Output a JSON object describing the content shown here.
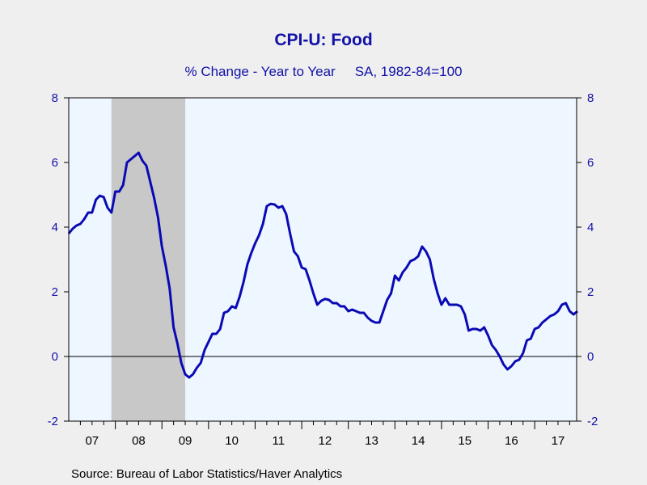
{
  "header": {
    "title": "CPI-U: Food",
    "subtitle_left": "% Change - Year to Year",
    "subtitle_right": "SA, 1982-84=100"
  },
  "footer": {
    "source": "Source:  Bureau of Labor Statistics/Haver Analytics"
  },
  "colors": {
    "series": "#0a0ab4",
    "plot_bg": "#eef6ff",
    "recession": "#c8c8c8",
    "axis_text": "#1212a8",
    "page_bg": "#efefef"
  },
  "chart_data": {
    "type": "line",
    "title": "CPI-U: Food",
    "subtitle": "% Change - Year to Year    SA, 1982-84=100",
    "ylim": [
      -2,
      8
    ],
    "xlim": [
      2007.0,
      2017.9
    ],
    "yticks": [
      8,
      6,
      4,
      2,
      0,
      -2
    ],
    "yticks_right": [
      8,
      6,
      4,
      2,
      0,
      -2
    ],
    "xtick_labels": [
      "07",
      "08",
      "09",
      "10",
      "11",
      "12",
      "13",
      "14",
      "15",
      "16",
      "17"
    ],
    "xtick_years": [
      2007,
      2008,
      2009,
      2010,
      2011,
      2012,
      2013,
      2014,
      2015,
      2016,
      2017
    ],
    "recession": {
      "start": "2007-12",
      "end": "2009-06"
    },
    "zero_line": true,
    "grid": false,
    "series": [
      {
        "values": [
          [
            "2007-01",
            3.8
          ],
          [
            "2007-02",
            3.95
          ],
          [
            "2007-03",
            4.05
          ],
          [
            "2007-04",
            4.1
          ],
          [
            "2007-05",
            4.25
          ],
          [
            "2007-06",
            4.45
          ],
          [
            "2007-07",
            4.45
          ],
          [
            "2007-08",
            4.85
          ],
          [
            "2007-09",
            4.97
          ],
          [
            "2007-10",
            4.93
          ],
          [
            "2007-11",
            4.6
          ],
          [
            "2007-12",
            4.45
          ],
          [
            "2008-01",
            5.1
          ],
          [
            "2008-02",
            5.1
          ],
          [
            "2008-03",
            5.3
          ],
          [
            "2008-04",
            6.0
          ],
          [
            "2008-05",
            6.1
          ],
          [
            "2008-06",
            6.2
          ],
          [
            "2008-07",
            6.3
          ],
          [
            "2008-08",
            6.05
          ],
          [
            "2008-09",
            5.9
          ],
          [
            "2008-10",
            5.4
          ],
          [
            "2008-11",
            4.9
          ],
          [
            "2008-12",
            4.3
          ],
          [
            "2009-01",
            3.4
          ],
          [
            "2009-02",
            2.8
          ],
          [
            "2009-03",
            2.1
          ],
          [
            "2009-04",
            0.9
          ],
          [
            "2009-05",
            0.4
          ],
          [
            "2009-06",
            -0.2
          ],
          [
            "2009-07",
            -0.55
          ],
          [
            "2009-08",
            -0.65
          ],
          [
            "2009-09",
            -0.55
          ],
          [
            "2009-10",
            -0.35
          ],
          [
            "2009-11",
            -0.2
          ],
          [
            "2009-12",
            0.2
          ],
          [
            "2010-01",
            0.45
          ],
          [
            "2010-02",
            0.7
          ],
          [
            "2010-03",
            0.7
          ],
          [
            "2010-04",
            0.85
          ],
          [
            "2010-05",
            1.35
          ],
          [
            "2010-06",
            1.4
          ],
          [
            "2010-07",
            1.55
          ],
          [
            "2010-08",
            1.5
          ],
          [
            "2010-09",
            1.85
          ],
          [
            "2010-10",
            2.3
          ],
          [
            "2010-11",
            2.85
          ],
          [
            "2010-12",
            3.2
          ],
          [
            "2011-01",
            3.5
          ],
          [
            "2011-02",
            3.75
          ],
          [
            "2011-03",
            4.1
          ],
          [
            "2011-04",
            4.65
          ],
          [
            "2011-05",
            4.72
          ],
          [
            "2011-06",
            4.7
          ],
          [
            "2011-07",
            4.6
          ],
          [
            "2011-08",
            4.65
          ],
          [
            "2011-09",
            4.4
          ],
          [
            "2011-10",
            3.8
          ],
          [
            "2011-11",
            3.25
          ],
          [
            "2011-12",
            3.1
          ],
          [
            "2012-01",
            2.75
          ],
          [
            "2012-02",
            2.7
          ],
          [
            "2012-03",
            2.35
          ],
          [
            "2012-04",
            1.95
          ],
          [
            "2012-05",
            1.6
          ],
          [
            "2012-06",
            1.72
          ],
          [
            "2012-07",
            1.78
          ],
          [
            "2012-08",
            1.75
          ],
          [
            "2012-09",
            1.65
          ],
          [
            "2012-10",
            1.65
          ],
          [
            "2012-11",
            1.55
          ],
          [
            "2012-12",
            1.55
          ],
          [
            "2013-01",
            1.4
          ],
          [
            "2013-02",
            1.45
          ],
          [
            "2013-03",
            1.4
          ],
          [
            "2013-04",
            1.35
          ],
          [
            "2013-05",
            1.35
          ],
          [
            "2013-06",
            1.2
          ],
          [
            "2013-07",
            1.1
          ],
          [
            "2013-08",
            1.05
          ],
          [
            "2013-09",
            1.05
          ],
          [
            "2013-10",
            1.4
          ],
          [
            "2013-11",
            1.75
          ],
          [
            "2013-12",
            1.95
          ],
          [
            "2014-01",
            2.5
          ],
          [
            "2014-02",
            2.35
          ],
          [
            "2014-03",
            2.6
          ],
          [
            "2014-04",
            2.75
          ],
          [
            "2014-05",
            2.95
          ],
          [
            "2014-06",
            3.0
          ],
          [
            "2014-07",
            3.1
          ],
          [
            "2014-08",
            3.4
          ],
          [
            "2014-09",
            3.25
          ],
          [
            "2014-10",
            3.0
          ],
          [
            "2014-11",
            2.4
          ],
          [
            "2014-12",
            1.95
          ],
          [
            "2015-01",
            1.6
          ],
          [
            "2015-02",
            1.8
          ],
          [
            "2015-03",
            1.6
          ],
          [
            "2015-04",
            1.6
          ],
          [
            "2015-05",
            1.6
          ],
          [
            "2015-06",
            1.55
          ],
          [
            "2015-07",
            1.3
          ],
          [
            "2015-08",
            0.8
          ],
          [
            "2015-09",
            0.85
          ],
          [
            "2015-10",
            0.85
          ],
          [
            "2015-11",
            0.8
          ],
          [
            "2015-12",
            0.9
          ],
          [
            "2016-01",
            0.65
          ],
          [
            "2016-02",
            0.35
          ],
          [
            "2016-03",
            0.2
          ],
          [
            "2016-04",
            0.0
          ],
          [
            "2016-05",
            -0.25
          ],
          [
            "2016-06",
            -0.4
          ],
          [
            "2016-07",
            -0.3
          ],
          [
            "2016-08",
            -0.15
          ],
          [
            "2016-09",
            -0.1
          ],
          [
            "2016-10",
            0.1
          ],
          [
            "2016-11",
            0.5
          ],
          [
            "2016-12",
            0.55
          ],
          [
            "2017-01",
            0.85
          ],
          [
            "2017-02",
            0.9
          ],
          [
            "2017-03",
            1.05
          ],
          [
            "2017-04",
            1.15
          ],
          [
            "2017-05",
            1.25
          ],
          [
            "2017-06",
            1.3
          ],
          [
            "2017-07",
            1.4
          ],
          [
            "2017-08",
            1.6
          ],
          [
            "2017-09",
            1.65
          ],
          [
            "2017-10",
            1.4
          ],
          [
            "2017-11",
            1.3
          ],
          [
            "2017-12",
            1.4
          ]
        ]
      }
    ]
  }
}
